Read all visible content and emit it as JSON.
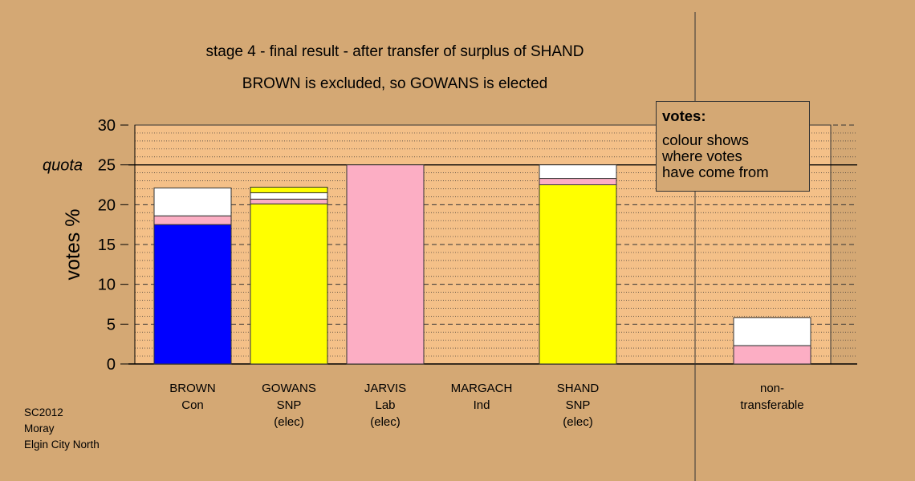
{
  "title": "stage 4 - final result - after transfer of surplus of SHAND",
  "subtitle": "BROWN is excluded, so GOWANS is elected",
  "legend": {
    "heading": "votes:",
    "lines": [
      "colour shows",
      "where votes",
      "have come from"
    ]
  },
  "footer": [
    "SC2012",
    "Moray",
    "Elgin City North"
  ],
  "colors": {
    "background": "#d4a874",
    "plot_area": "#f4c088",
    "Con": "#0000ff",
    "SNP": "#ffff00",
    "Lab": "#fcaec4",
    "transfer_other": "#ffffff"
  },
  "chart_data": {
    "type": "bar",
    "stacked": true,
    "ylabel": "votes %",
    "ylim": [
      0,
      30
    ],
    "yticks": [
      0,
      5,
      10,
      15,
      20,
      25,
      30
    ],
    "quota": {
      "label": "quota",
      "value": 25
    },
    "grid": "dashed every 5, dotted every 1",
    "legend_position": "top-right",
    "categories": [
      {
        "lines": [
          "BROWN",
          "Con"
        ],
        "segments": [
          {
            "source": "Con",
            "value": 17.5
          },
          {
            "source": "Lab",
            "value": 1.1
          },
          {
            "source": "other",
            "value": 3.5
          }
        ]
      },
      {
        "lines": [
          "GOWANS",
          "SNP",
          "(elec)"
        ],
        "segments": [
          {
            "source": "SNP",
            "value": 20.1
          },
          {
            "source": "Lab",
            "value": 0.6
          },
          {
            "source": "other",
            "value": 0.8
          },
          {
            "source": "SNP",
            "value": 0.7
          }
        ]
      },
      {
        "lines": [
          "JARVIS",
          "Lab",
          "(elec)"
        ],
        "segments": [
          {
            "source": "Lab",
            "value": 25.0
          }
        ]
      },
      {
        "lines": [
          "MARGACH",
          "Ind"
        ],
        "segments": []
      },
      {
        "lines": [
          "SHAND",
          "SNP",
          "(elec)"
        ],
        "segments": [
          {
            "source": "SNP",
            "value": 22.5
          },
          {
            "source": "Lab",
            "value": 0.8
          },
          {
            "source": "other",
            "value": 1.7
          }
        ]
      },
      {
        "lines": [
          "non-",
          "transferable"
        ],
        "segments": [
          {
            "source": "Lab",
            "value": 2.3
          },
          {
            "source": "other",
            "value": 3.5
          }
        ]
      }
    ]
  }
}
